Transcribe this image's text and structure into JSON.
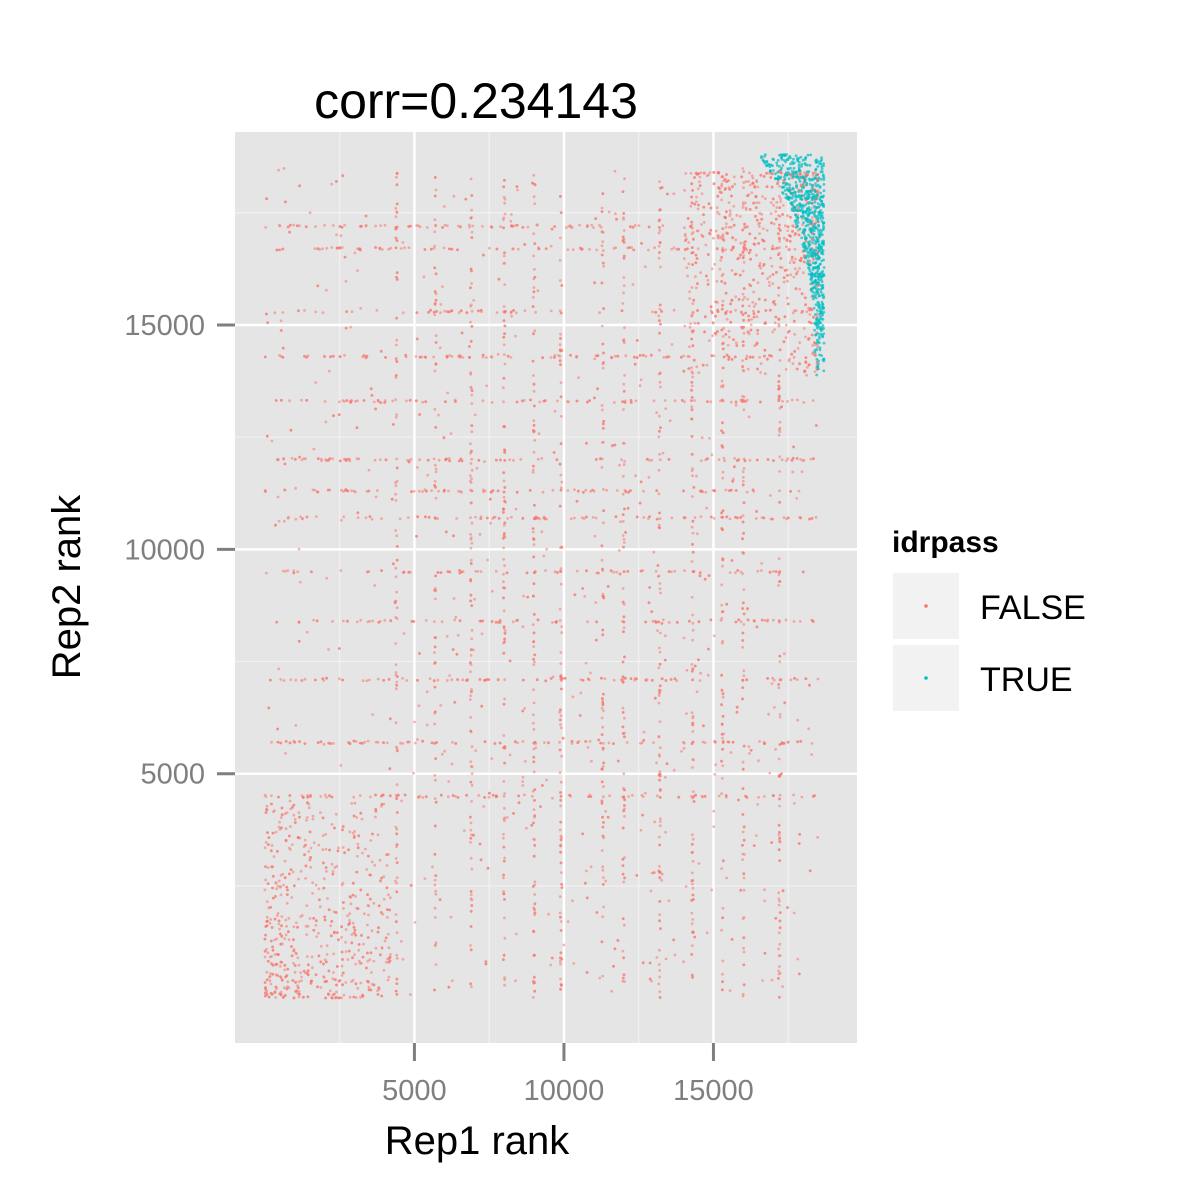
{
  "chart_data": {
    "type": "scatter",
    "title": "corr=0.234143",
    "xlabel": "Rep1 rank",
    "ylabel": "Rep2 rank",
    "xlim": [
      -1000,
      19800
    ],
    "ylim": [
      -1000,
      19300
    ],
    "x_ticks": [
      5000,
      10000,
      15000
    ],
    "y_ticks": [
      5000,
      10000,
      15000
    ],
    "x_tick_labels": [
      "5000",
      "10000",
      "15000"
    ],
    "y_tick_labels": [
      "5000",
      "10000",
      "15000"
    ],
    "grid": true,
    "background": "#e5e5e5",
    "legend": {
      "title": "idrpass",
      "placement": "right",
      "entries": [
        {
          "label": "FALSE",
          "color": "#f8766d"
        },
        {
          "label": "TRUE",
          "color": "#00bfc4"
        }
      ]
    },
    "series": [
      {
        "name": "FALSE",
        "color": "#f8766d",
        "point_count_approx": 18000,
        "x_range": [
          1,
          18500
        ],
        "y_range": [
          1,
          18500
        ],
        "tied_rank_values_x": [
          4400,
          5700,
          6900,
          8000,
          9000,
          9900,
          11300,
          12000,
          13200,
          14300,
          15300,
          16000,
          17200
        ],
        "tied_rank_values_y": [
          4500,
          5700,
          7100,
          8400,
          9500,
          10700,
          11300,
          12000,
          13300,
          14300,
          15300,
          16700,
          17200
        ]
      },
      {
        "name": "TRUE",
        "color": "#00bfc4",
        "point_count_approx": 700,
        "x_range": [
          16500,
          18700
        ],
        "y_range": [
          13700,
          18800
        ]
      }
    ]
  }
}
